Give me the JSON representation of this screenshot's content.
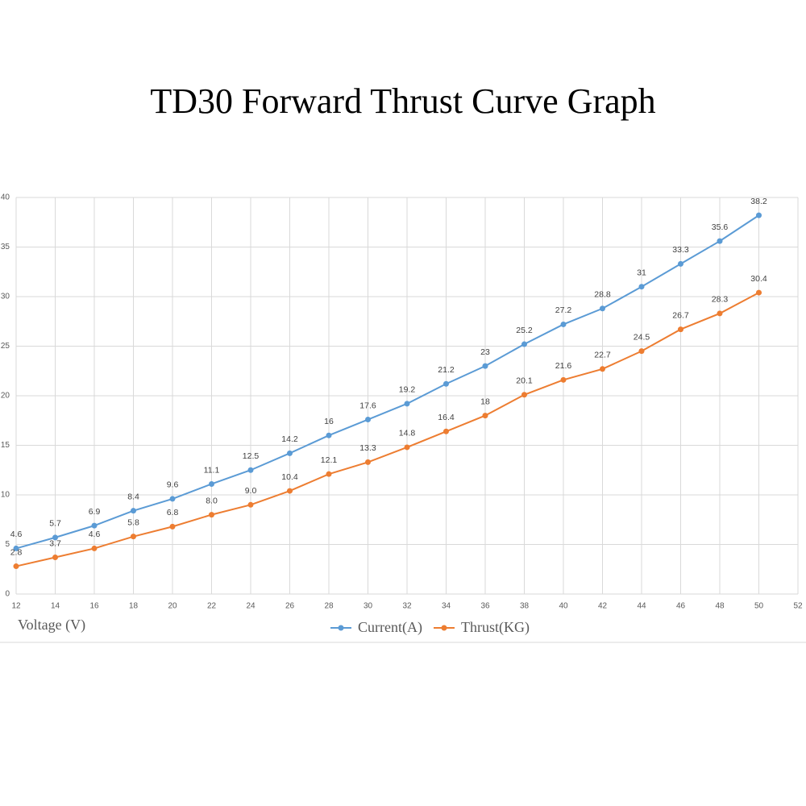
{
  "chart_data": {
    "type": "line",
    "title": "TD30 Forward Thrust Curve Graph",
    "xlabel": "Voltage (V)",
    "x": [
      12,
      14,
      16,
      18,
      20,
      22,
      24,
      26,
      28,
      30,
      32,
      34,
      36,
      38,
      40,
      42,
      44,
      46,
      48,
      50
    ],
    "series": [
      {
        "name": "Current(A)",
        "color": "#5b9bd5",
        "values": [
          4.6,
          5.7,
          6.9,
          8.4,
          9.6,
          11.1,
          12.5,
          14.2,
          16,
          17.6,
          19.2,
          21.2,
          23,
          25.2,
          27.2,
          28.8,
          31,
          33.3,
          35.6,
          38.2
        ]
      },
      {
        "name": "Thrust(KG)",
        "color": "#ed7d31",
        "values": [
          2.8,
          3.7,
          4.6,
          5.8,
          6.8,
          8.0,
          9.0,
          10.4,
          12.1,
          13.3,
          14.8,
          16.4,
          18,
          20.1,
          21.6,
          22.7,
          24.5,
          26.7,
          28.3,
          30.4
        ],
        "value_labels": [
          "2.8",
          "3.7",
          "4.6",
          "5.8",
          "6.8",
          "8.0",
          "9.0",
          "10.4",
          "12.1",
          "13.3",
          "14.8",
          "16.4",
          "18",
          "20.1",
          "21.6",
          "22.7",
          "24.5",
          "26.7",
          "28.3",
          "30.4"
        ]
      }
    ],
    "xlim": [
      12,
      52
    ],
    "xticks": [
      12,
      14,
      16,
      18,
      20,
      22,
      24,
      26,
      28,
      30,
      32,
      34,
      36,
      38,
      40,
      42,
      44,
      46,
      48,
      50,
      52
    ],
    "ylim": [
      0,
      40
    ],
    "yticks": [
      0,
      5,
      10,
      15,
      20,
      25,
      30,
      35,
      40
    ],
    "grid": true
  }
}
